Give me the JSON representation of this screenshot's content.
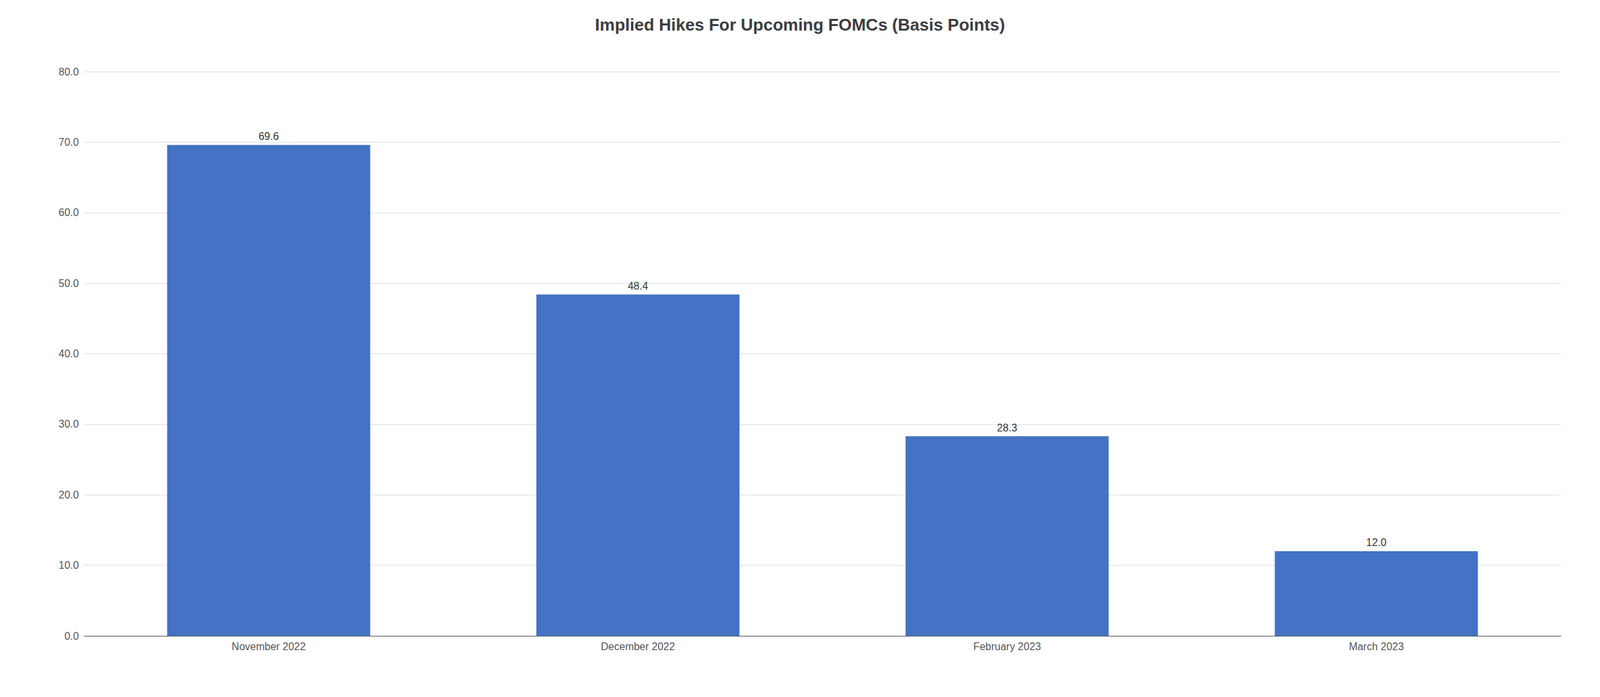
{
  "chart_data": {
    "type": "bar",
    "title": "Implied Hikes For Upcoming FOMCs (Basis Points)",
    "categories": [
      "November 2022",
      "December 2022",
      "February 2023",
      "March 2023"
    ],
    "values": [
      69.6,
      48.4,
      28.3,
      12.0
    ],
    "value_labels": [
      "69.6",
      "48.4",
      "28.3",
      "12.0"
    ],
    "color": "#4472C4",
    "ylim": [
      0,
      80
    ],
    "yticks": [
      {
        "value": 0,
        "label": "0.0"
      },
      {
        "value": 10,
        "label": "10.0"
      },
      {
        "value": 20,
        "label": "20.0"
      },
      {
        "value": 30,
        "label": "30.0"
      },
      {
        "value": 40,
        "label": "40.0"
      },
      {
        "value": 50,
        "label": "50.0"
      },
      {
        "value": 60,
        "label": "60.0"
      },
      {
        "value": 70,
        "label": "70.0"
      },
      {
        "value": 80,
        "label": "80.0"
      }
    ],
    "grid": true,
    "data_labels": true
  }
}
